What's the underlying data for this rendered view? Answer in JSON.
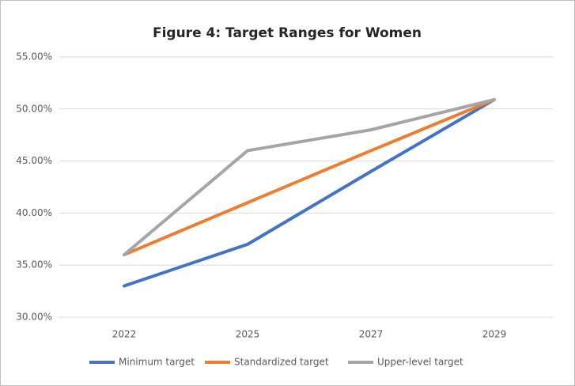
{
  "chart_data": {
    "type": "line",
    "title": "Figure 4: Target Ranges for Women",
    "categories": [
      "2022",
      "2025",
      "2027",
      "2029"
    ],
    "series": [
      {
        "name": "Minimum target",
        "color": "#4472c4",
        "values": [
          33,
          37,
          44,
          50.9
        ]
      },
      {
        "name": "Standardized target",
        "color": "#ed7d31",
        "values": [
          36,
          41,
          46,
          50.9
        ]
      },
      {
        "name": "Upper-level target",
        "color": "#a5a5a5",
        "values": [
          36,
          46,
          48,
          50.9
        ]
      }
    ],
    "ylim": [
      30,
      55
    ],
    "yticks": [
      {
        "value": 30,
        "label": "30.00%"
      },
      {
        "value": 35,
        "label": "35.00%"
      },
      {
        "value": 40,
        "label": "40.00%"
      },
      {
        "value": 45,
        "label": "45.00%"
      },
      {
        "value": 50,
        "label": "50.00%"
      },
      {
        "value": 55,
        "label": "55.00%"
      }
    ],
    "grid": true,
    "legend": "bottom"
  }
}
